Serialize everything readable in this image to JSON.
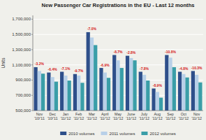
{
  "chart_data": {
    "type": "bar",
    "title": "New Passenger Car Registrations in the EU - Last 12 months",
    "ylabel": "Units",
    "categories": [
      "Nov\n'10/'11",
      "Dec\n'10/'11",
      "Jan\n'11/'12",
      "Feb\n'11/'12",
      "Mar\n'11/'12",
      "April\n'11/'12",
      "May\n'11/'12",
      "June\n'11/'12",
      "July\n'11/'12",
      "Aug\n'11/'12",
      "Sep\n'11/'12",
      "Oct\n'11/'12",
      "Nov\n'11/'12"
    ],
    "series": [
      {
        "name": "2010 volumes",
        "color": "#2e4f8a",
        "values": [
          1070000,
          1000000,
          1010000,
          980000,
          1530000,
          1060000,
          1230000,
          1220000,
          1010000,
          790000,
          1230000,
          1010000,
          1020000
        ]
      },
      {
        "name": "2011 volumes",
        "color": "#b8d0e8",
        "values": [
          1020000,
          940000,
          960000,
          960000,
          1460000,
          1000000,
          1160000,
          1190000,
          970000,
          745000,
          1195000,
          980000,
          970000
        ]
      },
      {
        "name": "2012 volumes",
        "color": "#3a9ea8",
        "values": [
          985000,
          880000,
          895000,
          865000,
          1360000,
          930000,
          1060000,
          1160000,
          895000,
          670000,
          1070000,
          935000,
          870000
        ]
      }
    ],
    "annotations": [
      "-3.2%",
      "-6.4%",
      "-7.1%",
      "-9.7%",
      "-7.0%",
      "-6.9%",
      "-8.7%",
      "-2.8%",
      "-7.8%",
      "-8.9%",
      "-10.8%",
      "-4.8%",
      "-10.3%"
    ],
    "ylim": [
      500000,
      1750000
    ],
    "yticks": [
      {
        "value": 500000,
        "label": "500,000"
      },
      {
        "value": 700000,
        "label": "700,000"
      },
      {
        "value": 900000,
        "label": "900,000"
      },
      {
        "value": 1100000,
        "label": "1,100,000"
      },
      {
        "value": 1300000,
        "label": "1,300,000"
      },
      {
        "value": 1500000,
        "label": "1,500,000"
      },
      {
        "value": 1700000,
        "label": "1,700,000"
      }
    ],
    "grid": true,
    "legend": "bottom"
  }
}
